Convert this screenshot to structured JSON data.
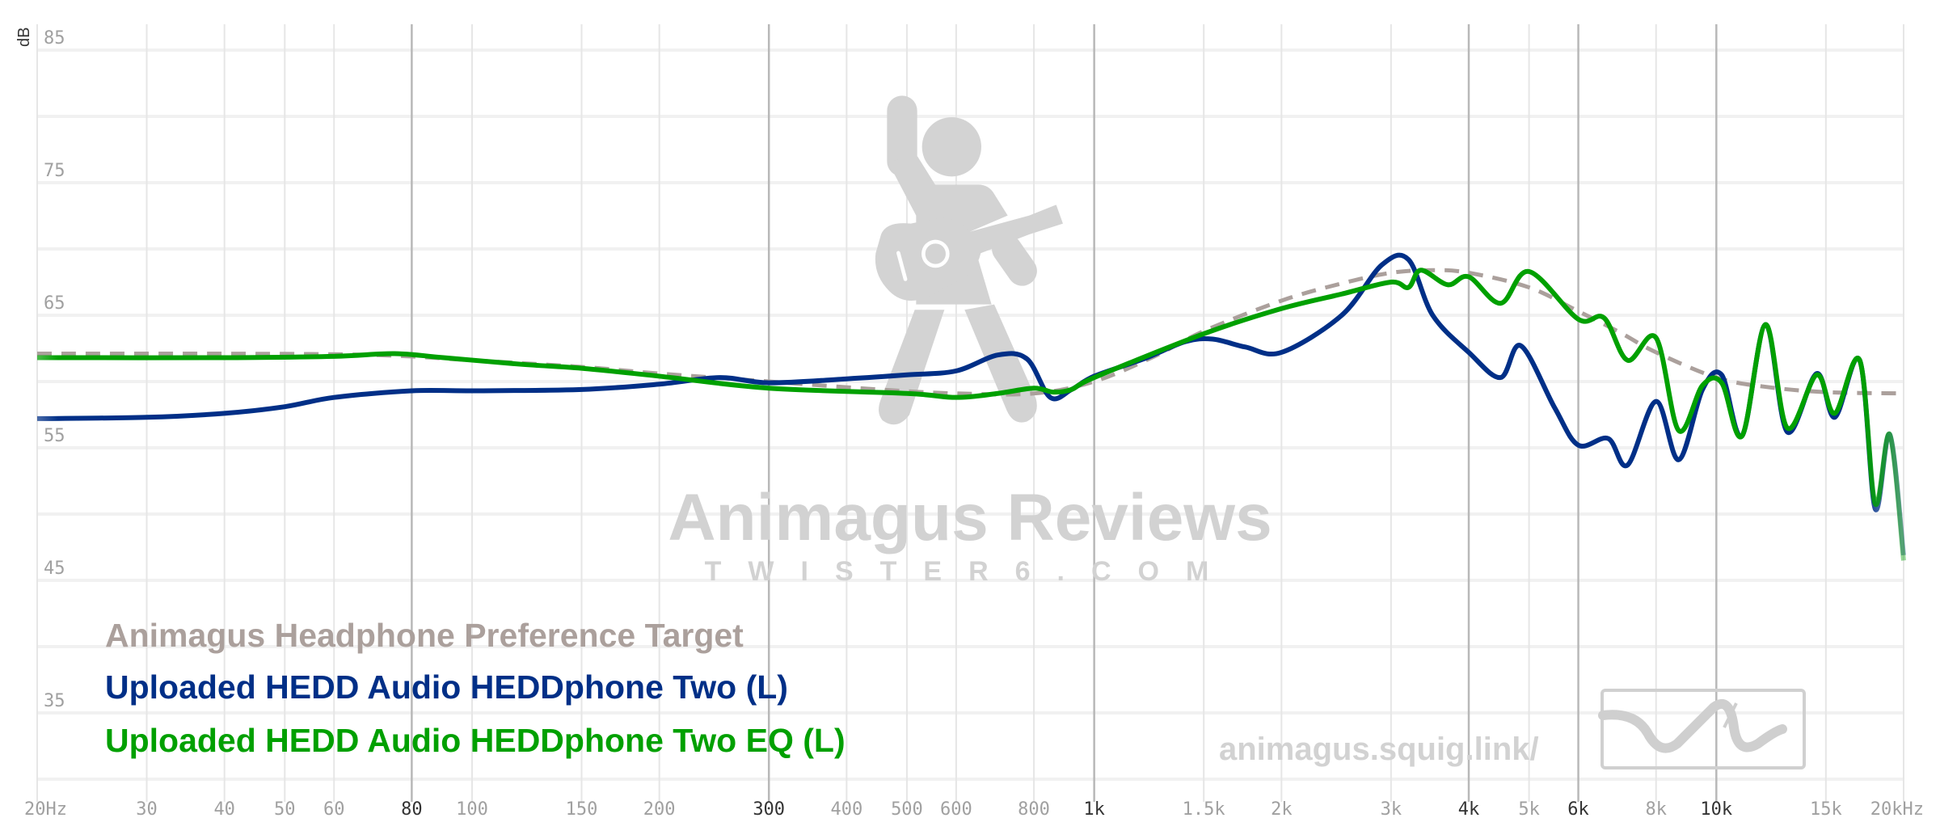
{
  "chart_data": {
    "type": "line",
    "ylabel": "dB",
    "x_scale": "log",
    "xlim": [
      20,
      20000
    ],
    "ylim": [
      29,
      87
    ],
    "grid": true,
    "legend_placement": "bottom-left",
    "x_ticks": [
      {
        "value": 20,
        "label": "20Hz"
      },
      {
        "value": 30,
        "label": "30"
      },
      {
        "value": 40,
        "label": "40"
      },
      {
        "value": 50,
        "label": "50"
      },
      {
        "value": 60,
        "label": "60"
      },
      {
        "value": 80,
        "label": "80",
        "emphasis": true
      },
      {
        "value": 100,
        "label": "100"
      },
      {
        "value": 150,
        "label": "150"
      },
      {
        "value": 200,
        "label": "200"
      },
      {
        "value": 300,
        "label": "300",
        "emphasis": true
      },
      {
        "value": 400,
        "label": "400"
      },
      {
        "value": 500,
        "label": "500"
      },
      {
        "value": 600,
        "label": "600"
      },
      {
        "value": 800,
        "label": "800"
      },
      {
        "value": 1000,
        "label": "1k",
        "emphasis": true
      },
      {
        "value": 1500,
        "label": "1.5k"
      },
      {
        "value": 2000,
        "label": "2k"
      },
      {
        "value": 3000,
        "label": "3k"
      },
      {
        "value": 4000,
        "label": "4k",
        "emphasis": true
      },
      {
        "value": 5000,
        "label": "5k"
      },
      {
        "value": 6000,
        "label": "6k",
        "emphasis": true
      },
      {
        "value": 8000,
        "label": "8k"
      },
      {
        "value": 10000,
        "label": "10k",
        "emphasis": true
      },
      {
        "value": 15000,
        "label": "15k"
      },
      {
        "value": 20000,
        "label": "20kHz"
      }
    ],
    "y_ticks": [
      85,
      75,
      65,
      55,
      45,
      35
    ],
    "y_gridlines": [
      30,
      35,
      40,
      45,
      50,
      55,
      60,
      65,
      70,
      75,
      80,
      85
    ],
    "series": [
      {
        "name": "Animagus Headphone Preference Target",
        "color": "#aba09c",
        "dashed": true,
        "points": [
          [
            20,
            62.1
          ],
          [
            40,
            62.1
          ],
          [
            70,
            62.0
          ],
          [
            100,
            61.6
          ],
          [
            150,
            61.1
          ],
          [
            200,
            60.6
          ],
          [
            300,
            60.0
          ],
          [
            450,
            59.4
          ],
          [
            600,
            59.1
          ],
          [
            800,
            59.1
          ],
          [
            1000,
            60.0
          ],
          [
            1250,
            61.9
          ],
          [
            1500,
            63.8
          ],
          [
            2000,
            66.1
          ],
          [
            2500,
            67.4
          ],
          [
            3000,
            68.2
          ],
          [
            3500,
            68.4
          ],
          [
            4000,
            68.2
          ],
          [
            5000,
            67.1
          ],
          [
            6000,
            65.3
          ],
          [
            7000,
            63.7
          ],
          [
            8000,
            62.2
          ],
          [
            10000,
            60.3
          ],
          [
            12000,
            59.6
          ],
          [
            15000,
            59.2
          ],
          [
            20000,
            59.1
          ]
        ]
      },
      {
        "name": "Uploaded HEDD Audio HEDDphone Two (L)",
        "color": "#002f87",
        "dashed": false,
        "points": [
          [
            20,
            57.2
          ],
          [
            30,
            57.3
          ],
          [
            40,
            57.6
          ],
          [
            50,
            58.1
          ],
          [
            60,
            58.8
          ],
          [
            80,
            59.3
          ],
          [
            100,
            59.3
          ],
          [
            150,
            59.4
          ],
          [
            200,
            59.8
          ],
          [
            250,
            60.3
          ],
          [
            300,
            59.9
          ],
          [
            400,
            60.2
          ],
          [
            500,
            60.5
          ],
          [
            600,
            60.8
          ],
          [
            700,
            62.0
          ],
          [
            780,
            61.7
          ],
          [
            850,
            58.8
          ],
          [
            920,
            59.4
          ],
          [
            1000,
            60.4
          ],
          [
            1200,
            61.7
          ],
          [
            1400,
            63.0
          ],
          [
            1550,
            63.2
          ],
          [
            1750,
            62.6
          ],
          [
            2000,
            62.2
          ],
          [
            2500,
            65.0
          ],
          [
            2900,
            68.8
          ],
          [
            3200,
            69.2
          ],
          [
            3500,
            65.0
          ],
          [
            4000,
            62.2
          ],
          [
            4500,
            60.3
          ],
          [
            4850,
            62.7
          ],
          [
            5500,
            58.0
          ],
          [
            6000,
            55.2
          ],
          [
            6700,
            55.7
          ],
          [
            7200,
            53.7
          ],
          [
            8000,
            58.5
          ],
          [
            8700,
            54.1
          ],
          [
            9500,
            59.4
          ],
          [
            10200,
            60.5
          ],
          [
            11000,
            55.9
          ],
          [
            12000,
            64.3
          ],
          [
            13000,
            56.2
          ],
          [
            14500,
            60.6
          ],
          [
            15500,
            57.3
          ],
          [
            17000,
            61.6
          ],
          [
            18000,
            50.4
          ],
          [
            19000,
            56.0
          ],
          [
            20000,
            46.9
          ]
        ]
      },
      {
        "name": "Uploaded HEDD Audio HEDDphone Two EQ (L)",
        "color": "#00a000",
        "dashed": false,
        "points": [
          [
            20,
            61.8
          ],
          [
            40,
            61.8
          ],
          [
            60,
            61.9
          ],
          [
            75,
            62.1
          ],
          [
            90,
            61.8
          ],
          [
            120,
            61.3
          ],
          [
            150,
            61.0
          ],
          [
            200,
            60.4
          ],
          [
            300,
            59.5
          ],
          [
            500,
            59.1
          ],
          [
            600,
            58.8
          ],
          [
            700,
            59.1
          ],
          [
            800,
            59.5
          ],
          [
            860,
            59.2
          ],
          [
            920,
            59.4
          ],
          [
            1000,
            60.3
          ],
          [
            1500,
            63.6
          ],
          [
            2000,
            65.5
          ],
          [
            2500,
            66.6
          ],
          [
            3000,
            67.5
          ],
          [
            3200,
            67.1
          ],
          [
            3350,
            68.4
          ],
          [
            3700,
            67.3
          ],
          [
            4000,
            67.9
          ],
          [
            4500,
            65.9
          ],
          [
            5000,
            68.3
          ],
          [
            6000,
            64.7
          ],
          [
            6600,
            64.8
          ],
          [
            7200,
            61.6
          ],
          [
            8000,
            63.3
          ],
          [
            8700,
            56.3
          ],
          [
            9500,
            59.7
          ],
          [
            10200,
            59.9
          ],
          [
            11000,
            55.9
          ],
          [
            12000,
            64.3
          ],
          [
            13000,
            56.5
          ],
          [
            14500,
            60.5
          ],
          [
            15500,
            57.6
          ],
          [
            17000,
            61.6
          ],
          [
            18000,
            50.8
          ],
          [
            19000,
            56.0
          ],
          [
            20000,
            46.5
          ]
        ]
      }
    ]
  },
  "watermark": {
    "brand": "Animagus Reviews",
    "site": "TWISTER6.COM",
    "url": "animagus.squig.link/"
  }
}
